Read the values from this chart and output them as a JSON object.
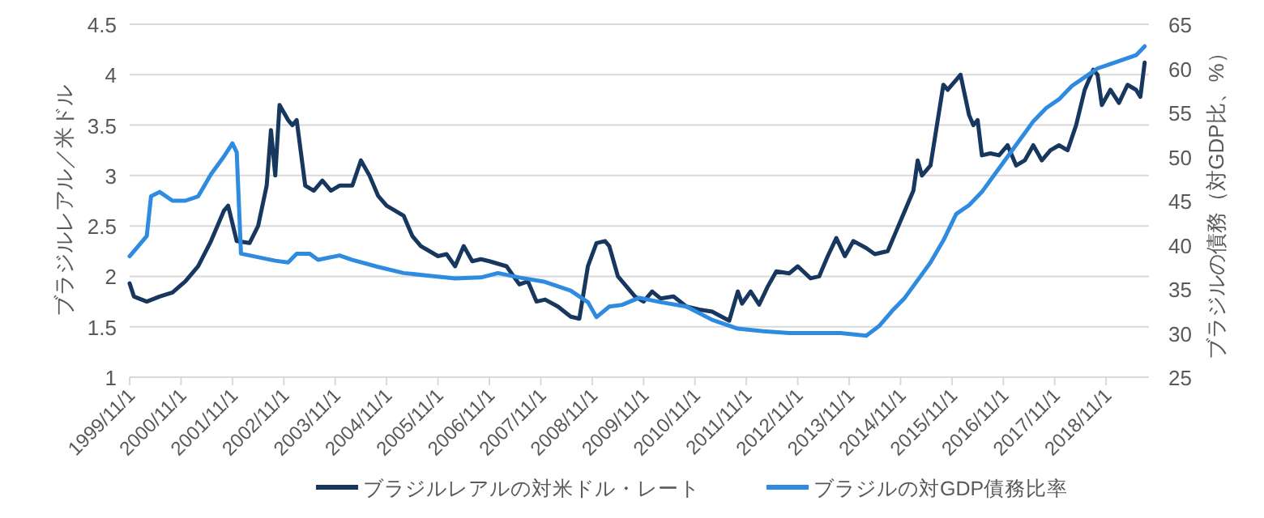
{
  "chart_data": {
    "type": "line",
    "ylabel": "ブラジルレアル／米ドル",
    "y2label": "ブラジルの債務（対GDP比、%）",
    "xlim": [
      "1999-11",
      "2019-09"
    ],
    "ylim": [
      1,
      4.5
    ],
    "yticks": [
      1,
      1.5,
      2,
      2.5,
      3,
      3.5,
      4,
      4.5
    ],
    "y2lim": [
      25,
      65
    ],
    "y2ticks": [
      25,
      30,
      35,
      40,
      45,
      50,
      55,
      60,
      65
    ],
    "xticks": [
      {
        "value": "1999-11",
        "label": "1999/11/1"
      },
      {
        "value": "2000-11",
        "label": "2000/11/1"
      },
      {
        "value": "2001-11",
        "label": "2001/11/1"
      },
      {
        "value": "2002-11",
        "label": "2002/11/1"
      },
      {
        "value": "2003-11",
        "label": "2003/11/1"
      },
      {
        "value": "2004-11",
        "label": "2004/11/1"
      },
      {
        "value": "2005-11",
        "label": "2005/11/1"
      },
      {
        "value": "2006-11",
        "label": "2006/11/1"
      },
      {
        "value": "2007-11",
        "label": "2007/11/1"
      },
      {
        "value": "2008-11",
        "label": "2008/11/1"
      },
      {
        "value": "2009-11",
        "label": "2009/11/1"
      },
      {
        "value": "2010-11",
        "label": "2010/11/1"
      },
      {
        "value": "2011-11",
        "label": "2011/11/1"
      },
      {
        "value": "2012-11",
        "label": "2012/11/1"
      },
      {
        "value": "2013-11",
        "label": "2013/11/1"
      },
      {
        "value": "2014-11",
        "label": "2014/11/1"
      },
      {
        "value": "2015-11",
        "label": "2015/11/1"
      },
      {
        "value": "2016-11",
        "label": "2016/11/1"
      },
      {
        "value": "2017-11",
        "label": "2017/11/1"
      },
      {
        "value": "2018-11",
        "label": "2018/11/1"
      }
    ],
    "grid": "y",
    "legend": "bottom",
    "marker": "none",
    "line_style": "solid",
    "series": [
      {
        "name": "ブラジルレアルの対米ドル・レート",
        "color": "#17375e",
        "x": [
          "1999-11",
          "1999-12",
          "2000-03",
          "2000-06",
          "2000-09",
          "2000-12",
          "2001-03",
          "2001-06",
          "2001-09",
          "2001-10",
          "2001-12",
          "2002-03",
          "2002-05",
          "2002-07",
          "2002-08",
          "2002-09",
          "2002-10",
          "2002-12",
          "2003-01",
          "2003-02",
          "2003-04",
          "2003-06",
          "2003-08",
          "2003-10",
          "2003-12",
          "2004-03",
          "2004-05",
          "2004-07",
          "2004-09",
          "2004-11",
          "2005-01",
          "2005-03",
          "2005-05",
          "2005-07",
          "2005-09",
          "2005-11",
          "2006-01",
          "2006-03",
          "2006-05",
          "2006-07",
          "2006-09",
          "2006-11",
          "2007-03",
          "2007-06",
          "2007-08",
          "2007-10",
          "2007-12",
          "2008-03",
          "2008-06",
          "2008-08",
          "2008-10",
          "2008-12",
          "2009-02",
          "2009-03",
          "2009-05",
          "2009-07",
          "2009-09",
          "2009-11",
          "2010-01",
          "2010-03",
          "2010-06",
          "2010-09",
          "2010-12",
          "2011-03",
          "2011-07",
          "2011-09",
          "2011-10",
          "2011-12",
          "2012-02",
          "2012-04",
          "2012-06",
          "2012-09",
          "2012-11",
          "2013-02",
          "2013-04",
          "2013-06",
          "2013-08",
          "2013-10",
          "2013-12",
          "2014-03",
          "2014-05",
          "2014-08",
          "2014-10",
          "2014-12",
          "2015-02",
          "2015-03",
          "2015-04",
          "2015-06",
          "2015-09",
          "2015-10",
          "2015-12",
          "2016-01",
          "2016-03",
          "2016-04",
          "2016-05",
          "2016-06",
          "2016-08",
          "2016-10",
          "2016-12",
          "2017-02",
          "2017-04",
          "2017-06",
          "2017-08",
          "2017-10",
          "2017-12",
          "2018-02",
          "2018-04",
          "2018-06",
          "2018-08",
          "2018-09",
          "2018-10",
          "2018-12",
          "2019-02",
          "2019-04",
          "2019-06",
          "2019-07",
          "2019-08"
        ],
        "values": [
          1.93,
          1.8,
          1.75,
          1.8,
          1.84,
          1.95,
          2.1,
          2.35,
          2.65,
          2.7,
          2.35,
          2.33,
          2.5,
          2.9,
          3.45,
          3.0,
          3.7,
          3.55,
          3.5,
          3.55,
          2.9,
          2.85,
          2.95,
          2.85,
          2.9,
          2.9,
          3.15,
          3.0,
          2.8,
          2.7,
          2.65,
          2.6,
          2.4,
          2.3,
          2.25,
          2.2,
          2.22,
          2.1,
          2.3,
          2.15,
          2.17,
          2.15,
          2.1,
          1.92,
          1.95,
          1.75,
          1.77,
          1.7,
          1.6,
          1.58,
          2.1,
          2.33,
          2.35,
          2.3,
          2.0,
          1.9,
          1.8,
          1.75,
          1.85,
          1.78,
          1.8,
          1.7,
          1.67,
          1.65,
          1.56,
          1.85,
          1.73,
          1.85,
          1.72,
          1.9,
          2.05,
          2.03,
          2.1,
          1.98,
          2.0,
          2.2,
          2.38,
          2.2,
          2.35,
          2.28,
          2.22,
          2.25,
          2.45,
          2.65,
          2.85,
          3.15,
          3.0,
          3.1,
          3.9,
          3.85,
          3.95,
          4.0,
          3.6,
          3.5,
          3.55,
          3.2,
          3.22,
          3.2,
          3.3,
          3.1,
          3.15,
          3.3,
          3.15,
          3.25,
          3.3,
          3.25,
          3.5,
          3.85,
          4.05,
          4.0,
          3.7,
          3.85,
          3.72,
          3.9,
          3.85,
          3.78,
          4.12
        ]
      },
      {
        "name": "ブラジルの対GDP債務比率",
        "color": "#2e8be0",
        "axis": "y2",
        "x": [
          "1999-11",
          "2000-03",
          "2000-04",
          "2000-06",
          "2000-09",
          "2000-12",
          "2001-03",
          "2001-06",
          "2001-09",
          "2001-11",
          "2001-12",
          "2002-01",
          "2002-06",
          "2002-09",
          "2002-12",
          "2003-02",
          "2003-05",
          "2003-07",
          "2003-12",
          "2004-03",
          "2004-09",
          "2005-03",
          "2005-09",
          "2006-03",
          "2006-09",
          "2007-01",
          "2007-06",
          "2007-12",
          "2008-06",
          "2008-10",
          "2008-12",
          "2009-03",
          "2009-06",
          "2009-10",
          "2010-03",
          "2010-09",
          "2011-03",
          "2011-09",
          "2012-03",
          "2012-09",
          "2013-03",
          "2013-09",
          "2014-03",
          "2014-06",
          "2014-09",
          "2014-12",
          "2015-03",
          "2015-06",
          "2015-09",
          "2015-12",
          "2016-03",
          "2016-06",
          "2016-09",
          "2016-12",
          "2017-03",
          "2017-06",
          "2017-09",
          "2017-12",
          "2018-03",
          "2018-06",
          "2018-09",
          "2018-12",
          "2019-03",
          "2019-06",
          "2019-08"
        ],
        "values": [
          38.7,
          41,
          45.5,
          46,
          45,
          45,
          45.5,
          48,
          50,
          51.5,
          50.5,
          39,
          38.5,
          38.2,
          38,
          39,
          39,
          38.3,
          38.8,
          38.3,
          37.5,
          36.8,
          36.5,
          36.2,
          36.3,
          36.8,
          36.3,
          35.8,
          34.8,
          33.5,
          31.8,
          33,
          33.2,
          34,
          33.5,
          33,
          31.5,
          30.5,
          30.2,
          30,
          30,
          30,
          29.7,
          30.8,
          32.5,
          34,
          36,
          38,
          40.5,
          43.5,
          44.5,
          46,
          48,
          50,
          52,
          54,
          55.5,
          56.5,
          58,
          59,
          60,
          60.5,
          61,
          61.5,
          62.5
        ]
      }
    ]
  }
}
